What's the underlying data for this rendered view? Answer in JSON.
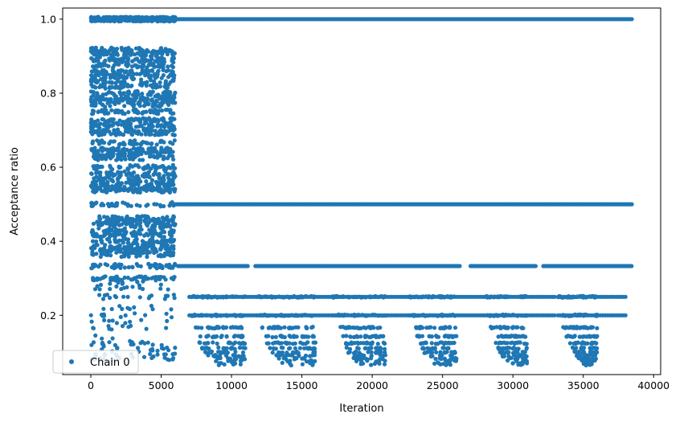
{
  "chart_data": {
    "type": "scatter",
    "xlabel": "Iteration",
    "ylabel": "Acceptance ratio",
    "xlim": [
      -2000,
      40500
    ],
    "ylim": [
      0.04,
      1.03
    ],
    "xticks": [
      0,
      5000,
      10000,
      15000,
      20000,
      25000,
      30000,
      35000,
      40000
    ],
    "xtick_labels": [
      "0",
      "5000",
      "10000",
      "15000",
      "20000",
      "25000",
      "30000",
      "35000",
      "40000"
    ],
    "yticks": [
      0.2,
      0.4,
      0.6,
      0.8,
      1.0
    ],
    "ytick_labels": [
      "0.2",
      "0.4",
      "0.6",
      "0.8",
      "1.0"
    ],
    "grid": false,
    "legend_position": "lower-left",
    "series": [
      {
        "name": "Chain 0",
        "color": "#1f77b4",
        "marker": "circle",
        "description_of_distribution": {
          "burn_in_range": [
            0,
            6000
          ],
          "burn_in_levels": [
            1.0,
            0.917,
            0.909,
            0.9,
            0.889,
            0.875,
            0.857,
            0.846,
            0.833,
            0.818,
            0.8,
            0.786,
            0.778,
            0.769,
            0.75,
            0.727,
            0.714,
            0.7,
            0.692,
            0.667,
            0.647,
            0.636,
            0.625,
            0.6,
            0.583,
            0.571,
            0.556,
            0.545,
            0.538,
            0.5,
            0.462,
            0.455,
            0.444,
            0.429,
            0.417,
            0.4,
            0.385,
            0.375,
            0.364,
            0.333,
            0.3,
            0.286,
            0.273,
            0.25,
            0.222,
            0.2,
            0.182,
            0.167,
            0.143,
            0.125,
            0.111,
            0.1,
            0.091,
            0.083
          ],
          "sampling_range": [
            6000,
            38500
          ],
          "sampling_continuous_levels": [
            1.0,
            0.5,
            0.333
          ],
          "sampling_band_starts": [
            7000,
            11800,
            17200,
            22600,
            28000,
            33200
          ],
          "sampling_band_ends": [
            11000,
            16000,
            21000,
            26000,
            31000,
            36000
          ],
          "sampling_band_levels": [
            0.25,
            0.2,
            0.167,
            0.143,
            0.125,
            0.111,
            0.1,
            0.091,
            0.083,
            0.077,
            0.071,
            0.067
          ]
        }
      }
    ]
  }
}
